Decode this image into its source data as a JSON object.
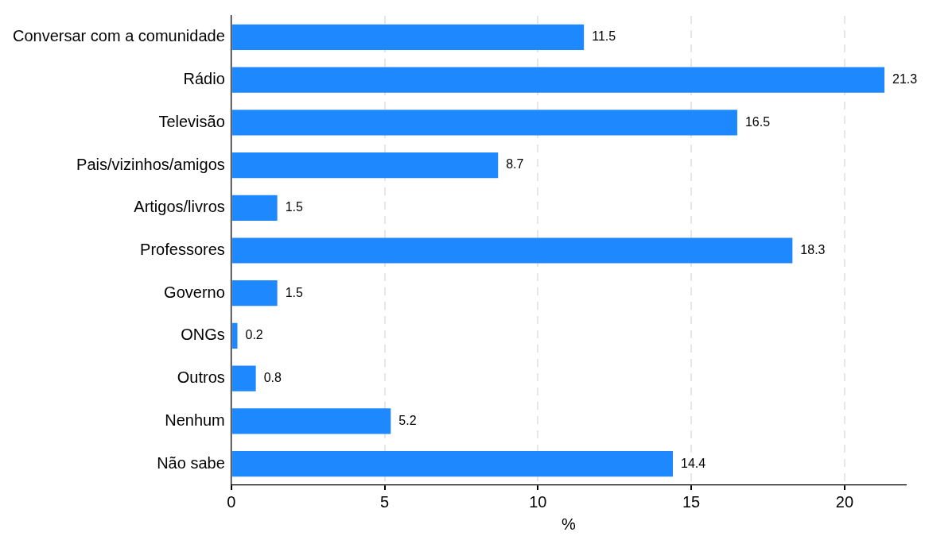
{
  "chart_data": {
    "type": "bar",
    "orientation": "horizontal",
    "xlabel": "%",
    "categories": [
      "Conversar com a comunidade",
      "Rádio",
      "Televisão",
      "Pais/vizinhos/amigos",
      "Artigos/livros",
      "Professores",
      "Governo",
      "ONGs",
      "Outros",
      "Nenhum",
      "Não sabe"
    ],
    "values": [
      11.5,
      21.3,
      16.5,
      8.7,
      1.5,
      18.3,
      1.5,
      0.2,
      0.8,
      5.2,
      14.4
    ],
    "color": "#1e88fe",
    "xlim": [
      0,
      22
    ],
    "xticks": [
      0,
      5,
      10,
      15,
      20
    ],
    "grid": "x",
    "data_labels": true
  }
}
